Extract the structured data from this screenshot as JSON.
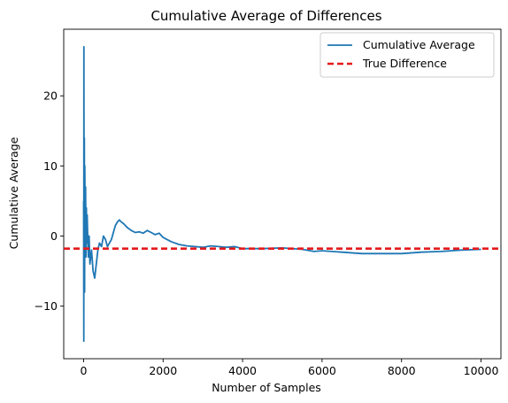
{
  "chart_data": {
    "type": "line",
    "title": "Cumulative Average of Differences",
    "xlabel": "Number of Samples",
    "ylabel": "Cumulative Average",
    "xlim": [
      -500,
      10500
    ],
    "ylim": [
      -17.5,
      29.5
    ],
    "xticks": [
      0,
      2000,
      4000,
      6000,
      8000,
      10000
    ],
    "yticks": [
      -10,
      0,
      10,
      20
    ],
    "grid": false,
    "legend_position": "top-right",
    "colors": {
      "cumulative": "#1f77b4",
      "true_difference": "#e41a1c"
    },
    "series": [
      {
        "name": "Cumulative Average",
        "style": "solid",
        "points": [
          [
            0,
            5
          ],
          [
            5,
            -15
          ],
          [
            8,
            27
          ],
          [
            12,
            2
          ],
          [
            18,
            14
          ],
          [
            25,
            -8
          ],
          [
            30,
            10
          ],
          [
            40,
            1
          ],
          [
            50,
            7
          ],
          [
            60,
            -3
          ],
          [
            70,
            4
          ],
          [
            80,
            -1
          ],
          [
            90,
            3
          ],
          [
            100,
            1
          ],
          [
            120,
            -3
          ],
          [
            140,
            0
          ],
          [
            160,
            -4
          ],
          [
            200,
            -2
          ],
          [
            240,
            -5
          ],
          [
            280,
            -6
          ],
          [
            320,
            -4
          ],
          [
            360,
            -2
          ],
          [
            400,
            -1
          ],
          [
            450,
            -1.5
          ],
          [
            500,
            0
          ],
          [
            550,
            -0.5
          ],
          [
            600,
            -1.5
          ],
          [
            650,
            -1
          ],
          [
            700,
            -0.5
          ],
          [
            750,
            0.5
          ],
          [
            800,
            1.5
          ],
          [
            850,
            2
          ],
          [
            900,
            2.3
          ],
          [
            950,
            2
          ],
          [
            1000,
            1.8
          ],
          [
            1100,
            1.2
          ],
          [
            1200,
            0.8
          ],
          [
            1300,
            0.5
          ],
          [
            1400,
            0.6
          ],
          [
            1500,
            0.4
          ],
          [
            1600,
            0.8
          ],
          [
            1700,
            0.5
          ],
          [
            1800,
            0.2
          ],
          [
            1900,
            0.4
          ],
          [
            2000,
            -0.2
          ],
          [
            2200,
            -0.8
          ],
          [
            2400,
            -1.2
          ],
          [
            2600,
            -1.4
          ],
          [
            2800,
            -1.5
          ],
          [
            3000,
            -1.6
          ],
          [
            3200,
            -1.4
          ],
          [
            3400,
            -1.5
          ],
          [
            3600,
            -1.6
          ],
          [
            3800,
            -1.5
          ],
          [
            4000,
            -1.8
          ],
          [
            4500,
            -1.8
          ],
          [
            5000,
            -1.7
          ],
          [
            5500,
            -1.9
          ],
          [
            5800,
            -2.2
          ],
          [
            6000,
            -2.1
          ],
          [
            6500,
            -2.3
          ],
          [
            7000,
            -2.5
          ],
          [
            7500,
            -2.5
          ],
          [
            8000,
            -2.5
          ],
          [
            8500,
            -2.3
          ],
          [
            9000,
            -2.2
          ],
          [
            9500,
            -2.0
          ],
          [
            10000,
            -1.9
          ]
        ]
      },
      {
        "name": "True Difference",
        "style": "dashed",
        "constant_y": -1.8
      }
    ]
  }
}
